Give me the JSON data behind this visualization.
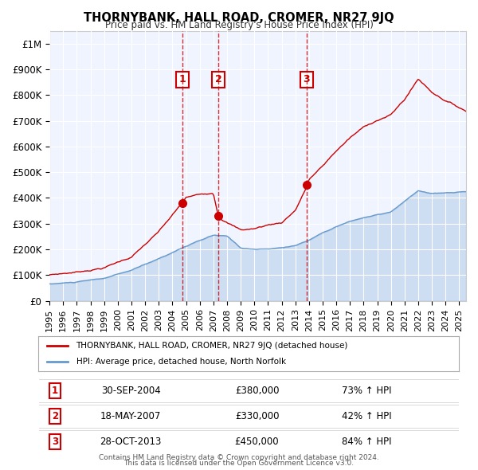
{
  "title": "THORNYBANK, HALL ROAD, CROMER, NR27 9JQ",
  "subtitle": "Price paid vs. HM Land Registry's House Price Index (HPI)",
  "hpi_label": "HPI: Average price, detached house, North Norfolk",
  "property_label": "THORNYBANK, HALL ROAD, CROMER, NR27 9JQ (detached house)",
  "footer_line1": "Contains HM Land Registry data © Crown copyright and database right 2024.",
  "footer_line2": "This data is licensed under the Open Government Licence v3.0.",
  "property_color": "#cc0000",
  "hpi_color": "#6699cc",
  "background_color": "#f0f4ff",
  "sale_points": [
    {
      "date_x": 2004.75,
      "price": 380000,
      "label": "1",
      "date_str": "30-SEP-2004",
      "pct": "73%",
      "direction": "↑"
    },
    {
      "date_x": 2007.38,
      "price": 330000,
      "label": "2",
      "date_str": "18-MAY-2007",
      "pct": "42%",
      "direction": "↑"
    },
    {
      "date_x": 2013.83,
      "price": 450000,
      "label": "3",
      "date_str": "28-OCT-2013",
      "pct": "84%",
      "direction": "↑"
    }
  ],
  "vline_color": "#cc0000",
  "label_box_color": "#ffffff",
  "label_box_edge": "#cc0000",
  "ylim_max": 1050000,
  "ylim_min": 0,
  "xlim_min": 1995,
  "xlim_max": 2025.5
}
